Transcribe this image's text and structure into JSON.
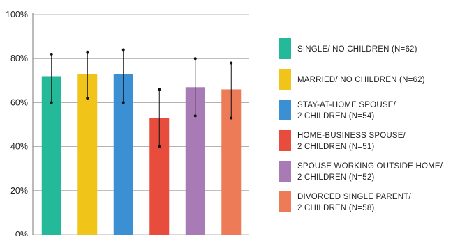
{
  "chart_data": {
    "type": "bar",
    "categories": [
      "SINGLE/ NO CHILDREN (N=62)",
      "MARRIED/ NO CHILDREN (N=62)",
      "STAY-AT-HOME SPOUSE/\n2 CHILDREN (N=54)",
      "HOME-BUSINESS SPOUSE/\n2 CHILDREN (N=51)",
      "SPOUSE WORKING OUTSIDE HOME/\n2 CHILDREN (N=52)",
      "DIVORCED SINGLE PARENT/\n2 CHILDREN (N=58)"
    ],
    "values": [
      72,
      73,
      73,
      53,
      67,
      66
    ],
    "error_low": [
      60,
      62,
      60,
      40,
      54,
      53
    ],
    "error_high": [
      82,
      83,
      84,
      66,
      80,
      78
    ],
    "colors": [
      "#24b999",
      "#f0c419",
      "#3b8fd3",
      "#e74c3c",
      "#a97bb6",
      "#ee7b57"
    ],
    "ylim": [
      0,
      100
    ],
    "yticks": [
      "0%",
      "20%",
      "40%",
      "60%",
      "80%",
      "100%"
    ],
    "grid": true,
    "legend_position": "right",
    "xlabel": "",
    "ylabel": ""
  }
}
